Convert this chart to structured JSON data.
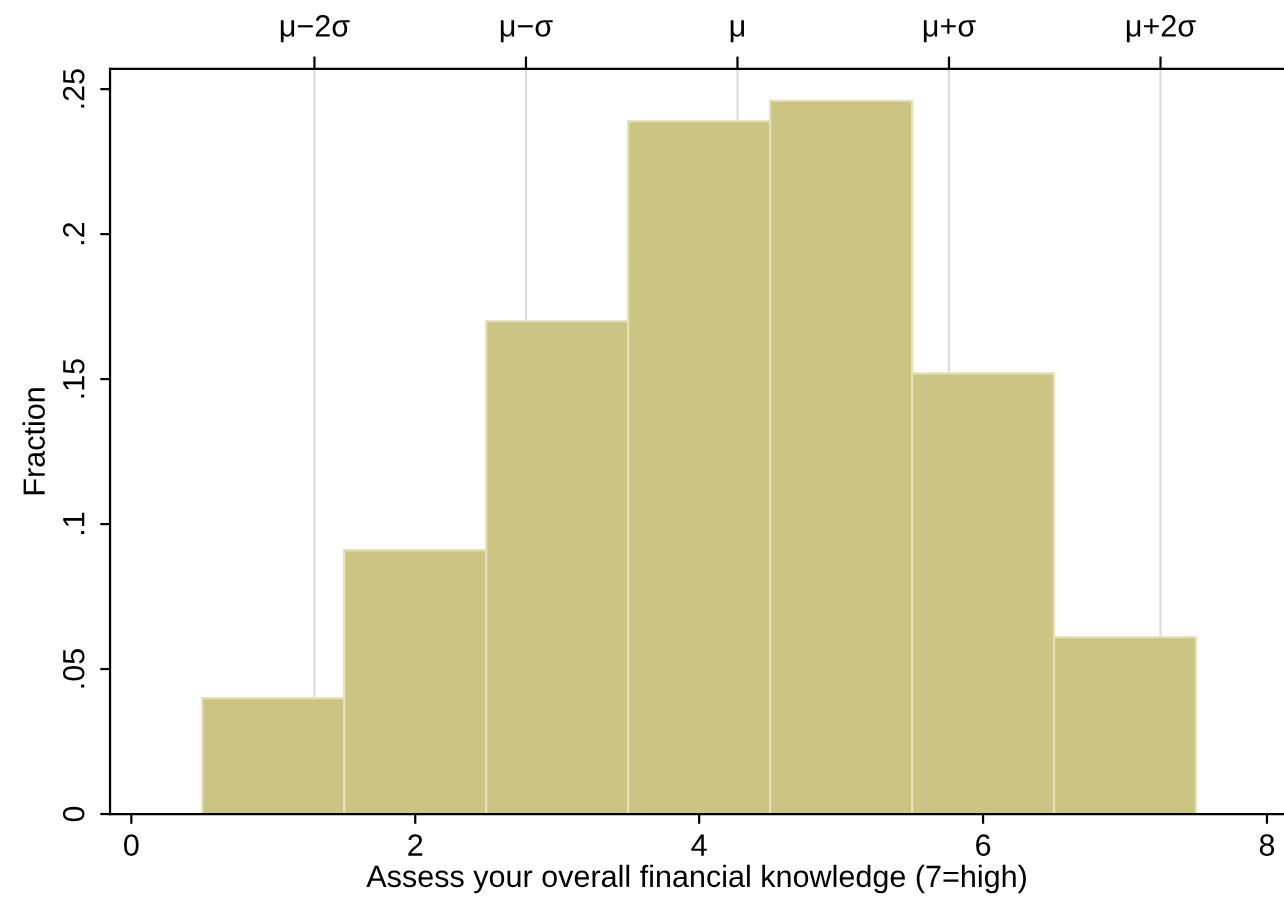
{
  "chart_data": {
    "type": "histogram",
    "xlabel": "Assess your overall financial knowledge (7=high)",
    "ylabel": "Fraction",
    "bins": [
      0.5,
      1.5,
      2.5,
      3.5,
      4.5,
      5.5,
      6.5,
      7.5
    ],
    "values": [
      0.04,
      0.091,
      0.17,
      0.239,
      0.246,
      0.152,
      0.061
    ],
    "color": "#cbc482",
    "xlim": [
      -0.15,
      8.12
    ],
    "xticks": [
      0,
      2,
      4,
      6,
      8
    ],
    "ylim": [
      0,
      0.257
    ],
    "yticks": [
      {
        "value": 0,
        "label": "0"
      },
      {
        "value": 0.05,
        "label": ".05"
      },
      {
        "value": 0.1,
        "label": ".1"
      },
      {
        "value": 0.15,
        "label": ".15"
      },
      {
        "value": 0.2,
        "label": ".2"
      },
      {
        "value": 0.25,
        "label": ".25"
      }
    ],
    "ref_lines": [
      {
        "axis": "x",
        "value": 1.29,
        "label": "μ−2σ",
        "color": "#dddddd"
      },
      {
        "axis": "x",
        "value": 2.78,
        "label": "μ−σ",
        "color": "#dddddd"
      },
      {
        "axis": "x",
        "value": 4.27,
        "label": "μ",
        "color": "#dddddd"
      },
      {
        "axis": "x",
        "value": 5.76,
        "label": "μ+σ",
        "color": "#dddddd"
      },
      {
        "axis": "x",
        "value": 7.25,
        "label": "μ+2σ",
        "color": "#dddddd"
      }
    ],
    "grid": false,
    "legend": false
  }
}
